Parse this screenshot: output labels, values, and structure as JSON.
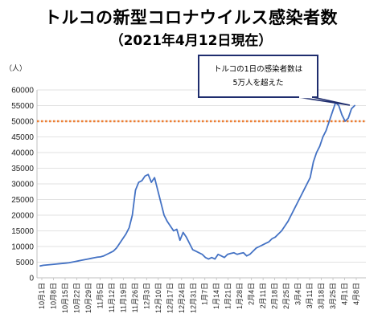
{
  "title": "トルコの新型コロナウイルス感染者数",
  "subtitle": "（2021年4月12日現在）",
  "colors": {
    "line": "#4472C4",
    "reference_line": "#ED7D31",
    "callout_border": "#1F2D6E",
    "grid": "#d9d9d9"
  },
  "chart_data": {
    "type": "line",
    "title": "トルコの新型コロナウイルス感染者数",
    "subtitle": "（2021年4月12日現在）",
    "ylabel": "（人）",
    "xlabel": "",
    "ylim": [
      0,
      60000
    ],
    "yticks": [
      0,
      5000,
      10000,
      15000,
      20000,
      25000,
      30000,
      35000,
      40000,
      45000,
      50000,
      55000,
      60000
    ],
    "ytick_labels": [
      "0",
      "5000",
      "10000",
      "15000",
      "20000",
      "25000",
      "30000",
      "35000",
      "40000",
      "45000",
      "50000",
      "55000",
      "60000"
    ],
    "xtick_labels": [
      "10月1日",
      "10月8日",
      "10月15日",
      "10月22日",
      "10月29日",
      "11月5日",
      "11月12日",
      "11月19日",
      "11月26日",
      "12月3日",
      "12月10日",
      "12月17日",
      "12月24日",
      "12月31日",
      "1月7日",
      "1月14日",
      "1月21日",
      "1月28日",
      "2月4日",
      "2月11日",
      "2月18日",
      "2月25日",
      "3月4日",
      "3月11日",
      "3月18日",
      "3月25日",
      "4月1日",
      "4月8日"
    ],
    "grid": true,
    "reference_line": {
      "value": 50000,
      "style": "dotted"
    },
    "annotation": {
      "lines": [
        "トルコの1日の感染者数は",
        "5万人を超えた"
      ]
    },
    "series": [
      {
        "values": [
          3800,
          4000,
          4100,
          4200,
          4300,
          4400,
          4500,
          4600,
          4700,
          4800,
          5000,
          5200,
          5400,
          5600,
          5800,
          6000,
          6200,
          6400,
          6600,
          6700,
          7000,
          7500,
          8000,
          8500,
          9500,
          11000,
          12500,
          14000,
          16000,
          20000,
          28000,
          30500,
          31000,
          32500,
          33000,
          30500,
          32000,
          28000,
          24000,
          20000,
          18000,
          16500,
          15000,
          15500,
          12000,
          14500,
          13000,
          11000,
          9000,
          8500,
          8000,
          7500,
          6500,
          6000,
          6500,
          6000,
          7500,
          7000,
          6500,
          7500,
          7800,
          8000,
          7500,
          7800,
          8000,
          7000,
          7500,
          8500,
          9500,
          10000,
          10500,
          11000,
          11500,
          12500,
          13000,
          14000,
          15000,
          16500,
          18000,
          20000,
          22000,
          24000,
          26000,
          28000,
          30000,
          32000,
          37000,
          40000,
          42000,
          45000,
          47000,
          50000,
          53000,
          56000,
          55000,
          52000,
          50000,
          51000,
          54000,
          55000
        ]
      }
    ]
  }
}
